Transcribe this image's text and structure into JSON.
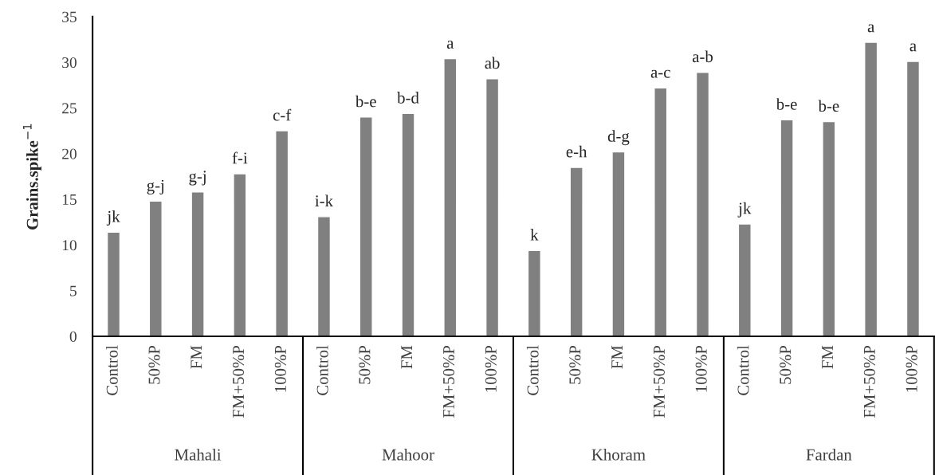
{
  "chart_data": {
    "type": "bar",
    "ylabel": "Grains.spike$^{−1}$",
    "categories": [
      "Control",
      "50%P",
      "FM",
      "FM+50%P",
      "100%P",
      "Control",
      "50%P",
      "FM",
      "FM+50%P",
      "100%P",
      "Control",
      "50%P",
      "FM",
      "FM+50%P",
      "100%P",
      "Control",
      "50%P",
      "FM",
      "FM+50%P",
      "100%P"
    ],
    "values": [
      11.4,
      14.8,
      15.8,
      17.8,
      22.5,
      13.1,
      24.0,
      24.4,
      30.4,
      28.2,
      9.4,
      18.5,
      20.2,
      27.2,
      28.9,
      12.3,
      23.7,
      23.5,
      32.2,
      30.1
    ],
    "value_labels": [
      "jk",
      "g-j",
      "g-j",
      "f-i",
      "c-f",
      "i-k",
      "b-e",
      "b-d",
      "a",
      "ab",
      "k",
      "e-h",
      "d-g",
      "a-c",
      "a-b",
      "jk",
      "b-e",
      "b-e",
      "a",
      "a"
    ],
    "color": "#808080",
    "ylim": [
      0,
      35
    ],
    "yticks": [
      0,
      5,
      10,
      15,
      20,
      25,
      30,
      35
    ],
    "annotations": [
      "Mahali",
      "Mahoor",
      "Khoram",
      "Fardan"
    ],
    "grid": false,
    "legend": false
  }
}
